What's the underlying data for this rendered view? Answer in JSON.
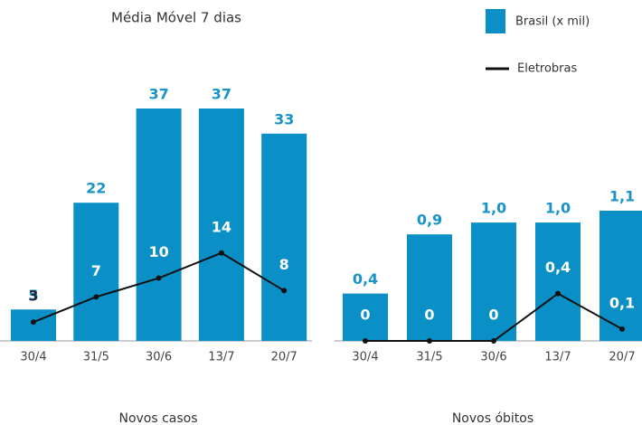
{
  "chart_data": [
    {
      "type": "bar",
      "title": "Média Móvel 7 dias",
      "xlabel": "Novos casos",
      "categories": [
        "30/4",
        "31/5",
        "30/6",
        "13/7",
        "20/7"
      ],
      "series": [
        {
          "name": "Brasil (x mil)",
          "color": "#0a8fc6",
          "values": [
            5,
            22,
            37,
            37,
            33
          ]
        },
        {
          "name": "Eletrobras",
          "type": "line",
          "color": "#111111",
          "values": [
            3,
            7,
            10,
            14,
            8
          ]
        }
      ]
    },
    {
      "type": "bar",
      "xlabel": "Novos óbitos",
      "categories": [
        "30/4",
        "31/5",
        "30/6",
        "13/7",
        "20/7"
      ],
      "series": [
        {
          "name": "Brasil (x mil)",
          "color": "#0a8fc6",
          "values": [
            0.4,
            0.9,
            1.0,
            1.0,
            1.1
          ],
          "value_labels": [
            "0,4",
            "0,9",
            "1,0",
            "1,0",
            "1,1"
          ]
        },
        {
          "name": "Eletrobras",
          "type": "line",
          "color": "#111111",
          "values": [
            0,
            0,
            0,
            0.4,
            0.1
          ],
          "value_labels": [
            "0",
            "0",
            "0",
            "0,4",
            "0,1"
          ]
        }
      ]
    }
  ]
}
